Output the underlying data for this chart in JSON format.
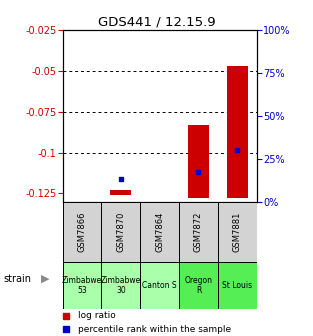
{
  "title": "GDS441 / 12.15.9",
  "samples": [
    "GSM7866",
    "GSM7870",
    "GSM7864",
    "GSM7872",
    "GSM7881"
  ],
  "strains": [
    "Zimbabwe\n53",
    "Zimbabwe\n30",
    "Canton S",
    "Oregon\nR",
    "St Louis"
  ],
  "strain_colors": [
    "#aaffaa",
    "#aaffaa",
    "#aaffaa",
    "#55ee55",
    "#55ee55"
  ],
  "log_ratio_bottom": [
    null,
    -0.126,
    null,
    -0.128,
    -0.128
  ],
  "log_ratio_top": [
    null,
    -0.123,
    null,
    -0.083,
    -0.047
  ],
  "percentile_ranks": [
    null,
    13,
    null,
    17,
    30
  ],
  "ylim_left": [
    -0.13,
    -0.025
  ],
  "ylim_right": [
    0,
    100
  ],
  "yticks_left": [
    -0.125,
    -0.1,
    -0.075,
    -0.05,
    -0.025
  ],
  "yticks_right": [
    0,
    25,
    50,
    75,
    100
  ],
  "ylabel_left_color": "#cc0000",
  "ylabel_right_color": "#0000cc",
  "bar_color": "#cc0000",
  "point_color": "#0000cc"
}
